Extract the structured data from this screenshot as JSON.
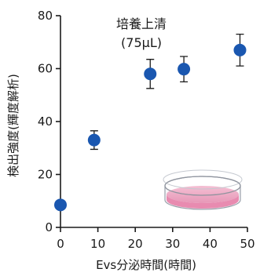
{
  "chart_data": {
    "type": "scatter",
    "title": "",
    "annotation_lines": [
      "培養上清",
      "(75μL)"
    ],
    "xlabel": "Evs分泌時間(時間)",
    "ylabel": "検出強度(輝度解析)",
    "xlim": [
      0,
      50
    ],
    "ylim": [
      0,
      80
    ],
    "x_ticks": [
      "0",
      "10",
      "20",
      "30",
      "40",
      "50"
    ],
    "y_ticks": [
      "0",
      "20",
      "40",
      "60",
      "80"
    ],
    "grid": false,
    "marker_color": "#1a57b0",
    "points": [
      {
        "x": 0,
        "y": 8.5,
        "err": 0
      },
      {
        "x": 9,
        "y": 33,
        "err": 3.5
      },
      {
        "x": 24,
        "y": 58,
        "err": 5.5
      },
      {
        "x": 33,
        "y": 59.8,
        "err": 4.8
      },
      {
        "x": 48,
        "y": 67,
        "err": 6
      }
    ],
    "icon": "petri-dish-icon"
  }
}
